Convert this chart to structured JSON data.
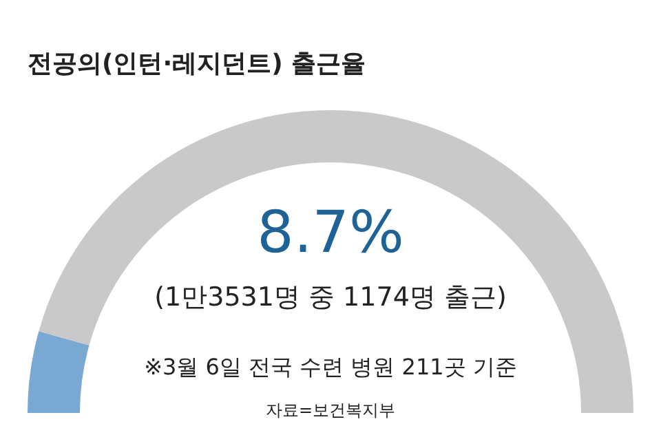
{
  "chart_data": {
    "type": "donut",
    "title": "전공의(인턴·레지던트) 출근율",
    "categories": [
      null,
      null
    ],
    "values": [
      8.7,
      91.3
    ],
    "colors": [
      "#79a9d3",
      "#c9c9c9"
    ],
    "annotations": [
      "8.7%",
      "(1만3531명 중 1174명 출근)",
      "※3월 6일 전국 수련 병원 211곳 기준",
      "자료=보건복지부"
    ]
  }
}
